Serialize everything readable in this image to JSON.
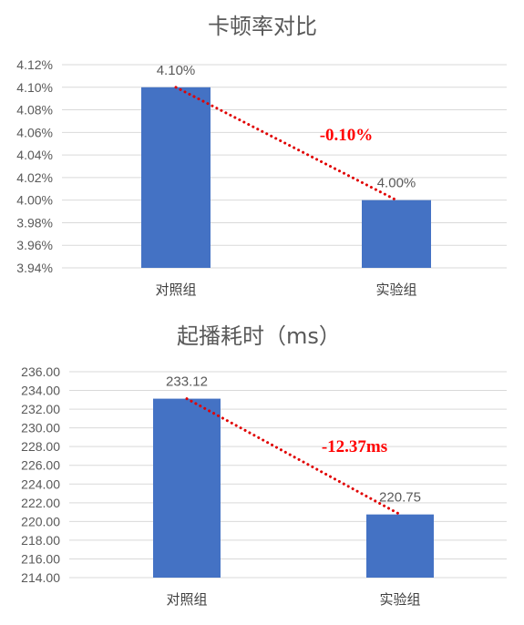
{
  "chart_data": [
    {
      "type": "bar",
      "title": "卡顿率对比",
      "categories": [
        "对照组",
        "实验组"
      ],
      "values": [
        4.1,
        4.0
      ],
      "data_labels": [
        "4.10%",
        "4.00%"
      ],
      "ylim": [
        3.94,
        4.12
      ],
      "ystep": 0.02,
      "yticks": [
        "3.94%",
        "3.96%",
        "3.98%",
        "4.00%",
        "4.02%",
        "4.04%",
        "4.06%",
        "4.08%",
        "4.10%",
        "4.12%"
      ],
      "grid": true,
      "bar_color": "#4472c4",
      "trend_color": "#e00000",
      "difference_label": "-0.10%"
    },
    {
      "type": "bar",
      "title": "起播耗时（ms）",
      "categories": [
        "对照组",
        "实验组"
      ],
      "values": [
        233.12,
        220.75
      ],
      "data_labels": [
        "233.12",
        "220.75"
      ],
      "ylim": [
        214,
        236
      ],
      "ystep": 2,
      "yticks": [
        "214.00",
        "216.00",
        "218.00",
        "220.00",
        "222.00",
        "224.00",
        "226.00",
        "228.00",
        "230.00",
        "232.00",
        "234.00",
        "236.00"
      ],
      "grid": true,
      "bar_color": "#4472c4",
      "trend_color": "#e00000",
      "difference_label": "-12.37ms"
    }
  ]
}
